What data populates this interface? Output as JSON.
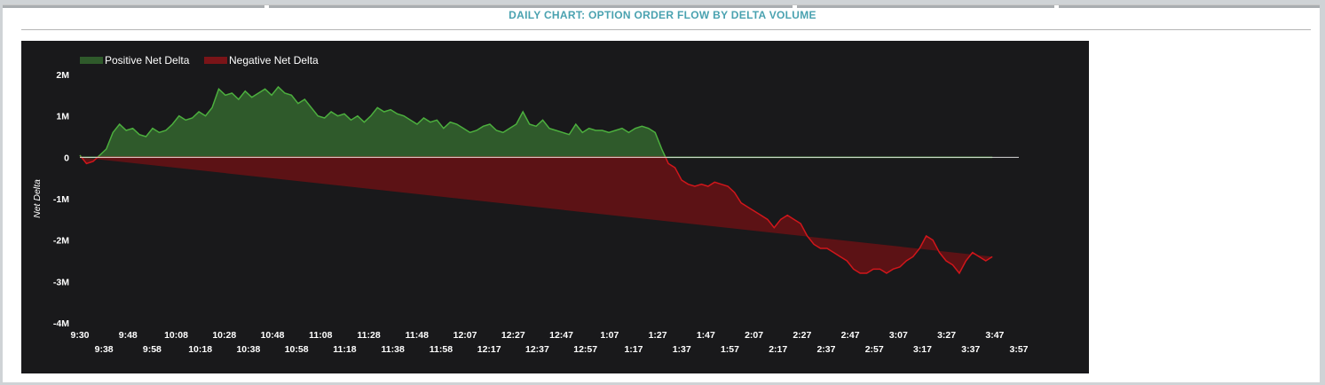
{
  "header": {
    "title": "DAILY CHART: OPTION ORDER FLOW BY DELTA VOLUME"
  },
  "colors": {
    "positive_fill": "#2f5a2b",
    "positive_line": "#4caf3e",
    "negative_fill": "#5c1215",
    "negative_line": "#d1161b",
    "background": "#19191b"
  },
  "chart_data": {
    "type": "area",
    "title": "DAILY CHART: OPTION ORDER FLOW BY DELTA VOLUME",
    "xlabel": "",
    "ylabel": "Net Delta",
    "ylim": [
      -4000000,
      2000000
    ],
    "y_ticks": [
      {
        "value": 2000000,
        "label": "2M"
      },
      {
        "value": 1000000,
        "label": "1M"
      },
      {
        "value": 0,
        "label": "0"
      },
      {
        "value": -1000000,
        "label": "-1M"
      },
      {
        "value": -2000000,
        "label": "-2M"
      },
      {
        "value": -3000000,
        "label": "-3M"
      },
      {
        "value": -4000000,
        "label": "-4M"
      }
    ],
    "x_ticks_row1": [
      "9:30",
      "9:48",
      "10:08",
      "10:28",
      "10:48",
      "11:08",
      "11:28",
      "11:48",
      "12:07",
      "12:27",
      "12:47",
      "1:07",
      "1:27",
      "1:47",
      "2:07",
      "2:27",
      "2:47",
      "3:07",
      "3:27",
      "3:47"
    ],
    "x_ticks_row2": [
      "9:38",
      "9:58",
      "10:18",
      "10:38",
      "10:58",
      "11:18",
      "11:38",
      "11:58",
      "12:17",
      "12:37",
      "12:57",
      "1:17",
      "1:37",
      "1:57",
      "2:17",
      "2:37",
      "2:57",
      "3:17",
      "3:37",
      "3:57"
    ],
    "legend": {
      "position": "top-left",
      "entries": [
        {
          "name": "Positive Net Delta",
          "color": "#2f5a2b"
        },
        {
          "name": "Negative Net Delta",
          "color": "#7a1418"
        }
      ]
    },
    "grid": false,
    "series": [
      {
        "name": "Net Delta",
        "x_minutes_from_open": [
          0,
          3,
          6,
          9,
          12,
          15,
          18,
          21,
          24,
          27,
          30,
          33,
          36,
          39,
          42,
          45,
          48,
          51,
          54,
          57,
          60,
          63,
          66,
          69,
          72,
          75,
          78,
          81,
          84,
          87,
          90,
          93,
          96,
          99,
          102,
          105,
          108,
          111,
          114,
          117,
          120,
          123,
          126,
          129,
          132,
          135,
          138,
          141,
          144,
          147,
          150,
          153,
          156,
          159,
          162,
          165,
          168,
          171,
          174,
          177,
          180,
          183,
          186,
          189,
          192,
          195,
          198,
          201,
          204,
          207,
          210,
          213,
          216,
          219,
          222,
          225,
          228,
          231,
          234,
          237,
          240,
          243,
          246,
          249,
          252,
          255,
          258,
          261,
          264,
          267,
          270,
          273,
          276,
          279,
          282,
          285,
          288,
          291,
          294,
          297,
          300,
          303,
          306,
          309,
          312,
          315,
          318,
          321,
          324,
          327,
          330,
          333,
          336,
          339,
          342,
          345,
          348,
          351,
          354,
          357,
          360,
          363,
          366,
          369,
          372,
          375,
          378,
          381,
          384,
          387,
          390,
          393,
          396,
          399,
          402,
          405,
          408,
          411,
          414,
          417,
          420,
          423,
          426
        ],
        "values": [
          50000,
          -150000,
          -100000,
          50000,
          200000,
          600000,
          800000,
          650000,
          700000,
          550000,
          500000,
          700000,
          600000,
          650000,
          800000,
          1000000,
          900000,
          950000,
          1100000,
          1000000,
          1200000,
          1650000,
          1500000,
          1550000,
          1400000,
          1600000,
          1450000,
          1550000,
          1650000,
          1500000,
          1700000,
          1550000,
          1500000,
          1300000,
          1400000,
          1200000,
          1000000,
          950000,
          1100000,
          1000000,
          1050000,
          900000,
          1000000,
          850000,
          1000000,
          1200000,
          1100000,
          1150000,
          1050000,
          1000000,
          900000,
          800000,
          950000,
          850000,
          900000,
          700000,
          850000,
          800000,
          700000,
          600000,
          650000,
          750000,
          800000,
          650000,
          600000,
          700000,
          800000,
          1100000,
          800000,
          750000,
          900000,
          700000,
          650000,
          600000,
          550000,
          800000,
          600000,
          700000,
          650000,
          650000,
          600000,
          650000,
          700000,
          600000,
          700000,
          750000,
          700000,
          600000,
          200000,
          -150000,
          -250000,
          -550000,
          -650000,
          -700000,
          -650000,
          -700000,
          -600000,
          -650000,
          -700000,
          -850000,
          -1100000,
          -1200000,
          -1300000,
          -1400000,
          -1500000,
          -1700000,
          -1500000,
          -1400000,
          -1500000,
          -1600000,
          -1900000,
          -2100000,
          -2200000,
          -2200000,
          -2300000,
          -2400000,
          -2500000,
          -2700000,
          -2800000,
          -2800000,
          -2700000,
          -2700000,
          -2800000,
          -2700000,
          -2650000,
          -2500000,
          -2400000,
          -2200000,
          -1900000,
          -2000000,
          -2300000,
          -2500000,
          -2600000,
          -2800000,
          -2500000,
          -2300000,
          -2400000,
          -2500000,
          -2400000
        ]
      }
    ]
  }
}
